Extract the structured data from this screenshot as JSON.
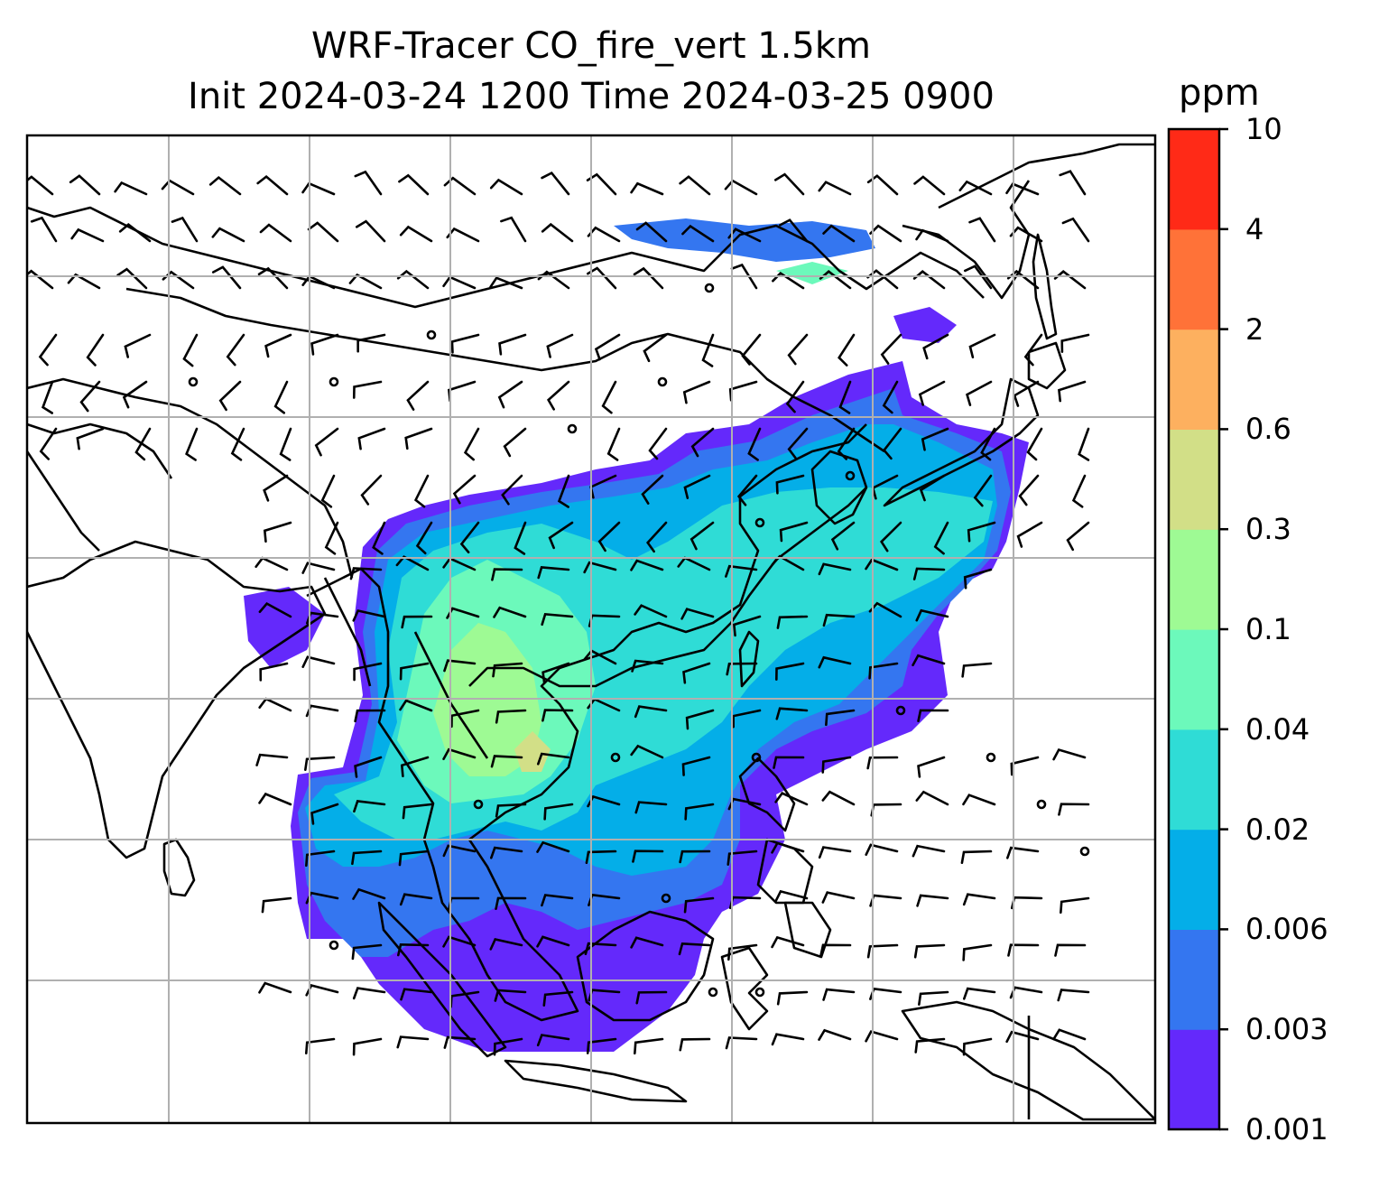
{
  "title": {
    "line1": "WRF-Tracer CO_fire_vert 1.5km",
    "line2": "Init 2024-03-24 1200 Time 2024-03-25 0900"
  },
  "colorbar": {
    "unit": "ppm",
    "levels": [
      "0.001",
      "0.003",
      "0.006",
      "0.02",
      "0.04",
      "0.1",
      "0.3",
      "0.6",
      "2",
      "4",
      "10"
    ],
    "colors": [
      "#6429fb",
      "#3476f0",
      "#04aee8",
      "#2fdcd6",
      "#6cf9bb",
      "#9efa94",
      "#d2df87",
      "#fdb05f",
      "#ff7238",
      "#ff2a17"
    ]
  },
  "map": {
    "gridlines": true,
    "coastline_color": "#000000",
    "grid_color": "#b0b0b0",
    "wind_barb_color": "#000000"
  }
}
